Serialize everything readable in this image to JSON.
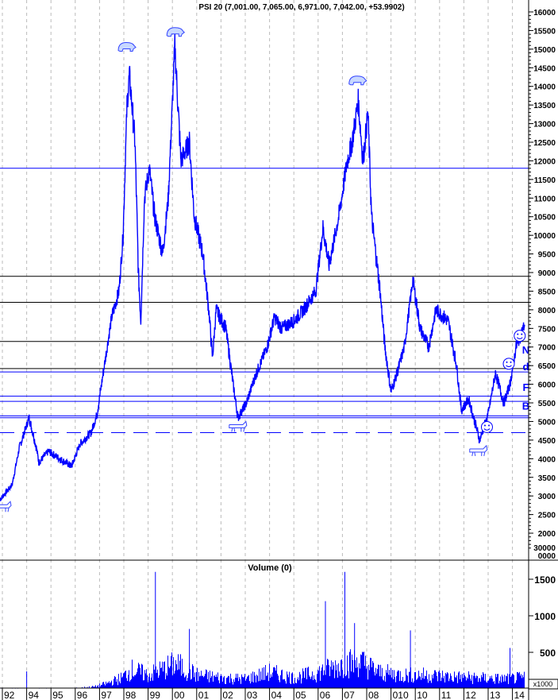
{
  "chart_data": [
    {
      "type": "line",
      "title": "PSI 20 (7,001.00, 7,065.00, 6,971.00, 7,042.00, +53.9902)",
      "ylim": [
        1500,
        16200
      ],
      "y_ticks": [
        2000,
        2500,
        3000,
        3500,
        4000,
        4500,
        5000,
        5500,
        6000,
        6500,
        7000,
        7500,
        8000,
        8500,
        9000,
        9500,
        10000,
        10500,
        11000,
        11500,
        12000,
        12500,
        13000,
        13500,
        14000,
        14500,
        15000,
        15500,
        16000
      ],
      "y_extra_labels": [
        "30000",
        "0000"
      ],
      "x_ticks": [
        {
          "label": "92",
          "year": 1993
        },
        {
          "label": "94",
          "year": 1994
        },
        {
          "label": "95",
          "year": 1995
        },
        {
          "label": "96",
          "year": 1996
        },
        {
          "label": "97",
          "year": 1997
        },
        {
          "label": "98",
          "year": 1998
        },
        {
          "label": "99",
          "year": 1999
        },
        {
          "label": "00",
          "year": 2000
        },
        {
          "label": "01",
          "year": 2001
        },
        {
          "label": "02",
          "year": 2002
        },
        {
          "label": "03",
          "year": 2003
        },
        {
          "label": "04",
          "year": 2004
        },
        {
          "label": "05",
          "year": 2005
        },
        {
          "label": "06",
          "year": 2006
        },
        {
          "label": "07",
          "year": 2007
        },
        {
          "label": "08",
          "year": 2008
        },
        {
          "label": "010",
          "year": 2009
        },
        {
          "label": "10",
          "year": 2010
        },
        {
          "label": "11",
          "year": 2011
        },
        {
          "label": "12",
          "year": 2012
        },
        {
          "label": "13",
          "year": 2013
        },
        {
          "label": "14",
          "year": 2014
        }
      ],
      "xlim": [
        1992.9,
        2014.7
      ],
      "series_color": "#0000ff",
      "points": [
        [
          1992.9,
          2900
        ],
        [
          1993.4,
          3300
        ],
        [
          1993.7,
          4300
        ],
        [
          1994.1,
          5100
        ],
        [
          1994.4,
          4300
        ],
        [
          1994.5,
          3900
        ],
        [
          1994.9,
          4200
        ],
        [
          1995.35,
          4000
        ],
        [
          1995.85,
          3800
        ],
        [
          1996.2,
          4400
        ],
        [
          1996.65,
          4700
        ],
        [
          1996.9,
          5200
        ],
        [
          1997.15,
          6300
        ],
        [
          1997.5,
          7800
        ],
        [
          1997.8,
          8500
        ],
        [
          1997.97,
          10000
        ],
        [
          1998.13,
          13500
        ],
        [
          1998.23,
          14300
        ],
        [
          1998.46,
          12500
        ],
        [
          1998.6,
          9000
        ],
        [
          1998.7,
          7700
        ],
        [
          1998.85,
          11000
        ],
        [
          1999.05,
          11800
        ],
        [
          1999.27,
          10500
        ],
        [
          1999.6,
          9500
        ],
        [
          1999.83,
          11000
        ],
        [
          2000.03,
          14000
        ],
        [
          2000.1,
          15100
        ],
        [
          2000.35,
          12000
        ],
        [
          2000.7,
          12500
        ],
        [
          2000.9,
          10500
        ],
        [
          2001.25,
          9500
        ],
        [
          2001.5,
          8000
        ],
        [
          2001.65,
          6700
        ],
        [
          2001.8,
          8000
        ],
        [
          2002.2,
          7500
        ],
        [
          2002.5,
          6000
        ],
        [
          2002.7,
          5100
        ],
        [
          2003.05,
          5500
        ],
        [
          2003.4,
          6200
        ],
        [
          2003.9,
          7000
        ],
        [
          2004.2,
          7800
        ],
        [
          2004.5,
          7500
        ],
        [
          2005.0,
          7700
        ],
        [
          2005.4,
          8000
        ],
        [
          2005.9,
          8500
        ],
        [
          2006.2,
          10200
        ],
        [
          2006.45,
          9200
        ],
        [
          2006.85,
          10500
        ],
        [
          2007.2,
          12000
        ],
        [
          2007.4,
          12500
        ],
        [
          2007.65,
          13600
        ],
        [
          2007.85,
          12000
        ],
        [
          2008.05,
          13300
        ],
        [
          2008.2,
          10500
        ],
        [
          2008.55,
          8500
        ],
        [
          2008.75,
          7000
        ],
        [
          2009.0,
          5800
        ],
        [
          2009.25,
          6300
        ],
        [
          2009.55,
          7000
        ],
        [
          2009.9,
          8800
        ],
        [
          2010.2,
          7500
        ],
        [
          2010.55,
          7000
        ],
        [
          2010.85,
          8000
        ],
        [
          2011.35,
          7700
        ],
        [
          2011.7,
          6500
        ],
        [
          2011.9,
          5300
        ],
        [
          2012.2,
          5600
        ],
        [
          2012.65,
          4500
        ],
        [
          2013.0,
          5200
        ],
        [
          2013.3,
          6300
        ],
        [
          2013.65,
          5500
        ],
        [
          2013.9,
          6000
        ],
        [
          2014.15,
          7000
        ],
        [
          2014.5,
          7600
        ]
      ],
      "horizontal_lines": [
        {
          "value": 11800,
          "color": "#0000ff",
          "style": "solid"
        },
        {
          "value": 8900,
          "color": "#000000",
          "style": "solid"
        },
        {
          "value": 8200,
          "color": "#000000",
          "style": "solid"
        },
        {
          "value": 7150,
          "color": "#000000",
          "style": "solid"
        },
        {
          "value": 6420,
          "color": "#000000",
          "style": "solid"
        },
        {
          "value": 6330,
          "color": "#0000ff",
          "style": "solid"
        },
        {
          "value": 5680,
          "color": "#0000ff",
          "style": "solid"
        },
        {
          "value": 5540,
          "color": "#0000ff",
          "style": "solid"
        },
        {
          "value": 5150,
          "color": "#0000ff",
          "style": "solid"
        },
        {
          "value": 5100,
          "color": "#0000ff",
          "style": "solid"
        },
        {
          "value": 4700,
          "color": "#0000ff",
          "style": "dashed"
        }
      ],
      "annotations": [
        {
          "type": "bull",
          "year": 1993.0,
          "value": 2700
        },
        {
          "type": "bear",
          "year": 1998.1,
          "value": 15050
        },
        {
          "type": "bear",
          "year": 2000.1,
          "value": 15450
        },
        {
          "type": "bear",
          "year": 2007.6,
          "value": 14150
        },
        {
          "type": "bull",
          "year": 2002.7,
          "value": 4850
        },
        {
          "type": "bull",
          "year": 2012.6,
          "value": 4200
        },
        {
          "type": "smiley",
          "year": 2012.95,
          "value": 4850
        },
        {
          "type": "smiley",
          "year": 2013.85,
          "value": 6550
        },
        {
          "type": "smiley",
          "year": 2014.3,
          "value": 7300
        },
        {
          "type": "letter",
          "text": "N",
          "year": 2014.55,
          "value": 6950
        },
        {
          "type": "letter",
          "text": "d",
          "year": 2014.55,
          "value": 6500
        },
        {
          "type": "letter",
          "text": "F",
          "year": 2014.55,
          "value": 5950
        },
        {
          "type": "letter",
          "text": "B",
          "year": 2014.55,
          "value": 5450
        }
      ]
    },
    {
      "type": "bar",
      "title": "Volume (0)",
      "unit_label": "x1000",
      "ylim": [
        0,
        1700
      ],
      "y_ticks": [
        500,
        1000,
        1500
      ],
      "series_color": "#0000ff",
      "envelope": [
        [
          1992.9,
          10
        ],
        [
          1996.0,
          15
        ],
        [
          1996.8,
          40
        ],
        [
          1997.3,
          100
        ],
        [
          1997.9,
          200
        ],
        [
          1998.3,
          350
        ],
        [
          1999.0,
          250
        ],
        [
          2000.1,
          450
        ],
        [
          2001.0,
          250
        ],
        [
          2002.0,
          200
        ],
        [
          2003.0,
          180
        ],
        [
          2004.0,
          300
        ],
        [
          2005.0,
          200
        ],
        [
          2006.0,
          300
        ],
        [
          2007.0,
          450
        ],
        [
          2007.7,
          500
        ],
        [
          2008.5,
          300
        ],
        [
          2009.5,
          250
        ],
        [
          2010.5,
          250
        ],
        [
          2011.5,
          220
        ],
        [
          2012.5,
          200
        ],
        [
          2013.5,
          180
        ],
        [
          2014.5,
          200
        ]
      ],
      "spikes": [
        [
          1994.0,
          240
        ],
        [
          1999.3,
          1600
        ],
        [
          2000.7,
          820
        ],
        [
          2006.3,
          1200
        ],
        [
          2007.1,
          1600
        ],
        [
          2007.5,
          900
        ],
        [
          2009.8,
          800
        ],
        [
          2013.9,
          560
        ]
      ]
    }
  ]
}
